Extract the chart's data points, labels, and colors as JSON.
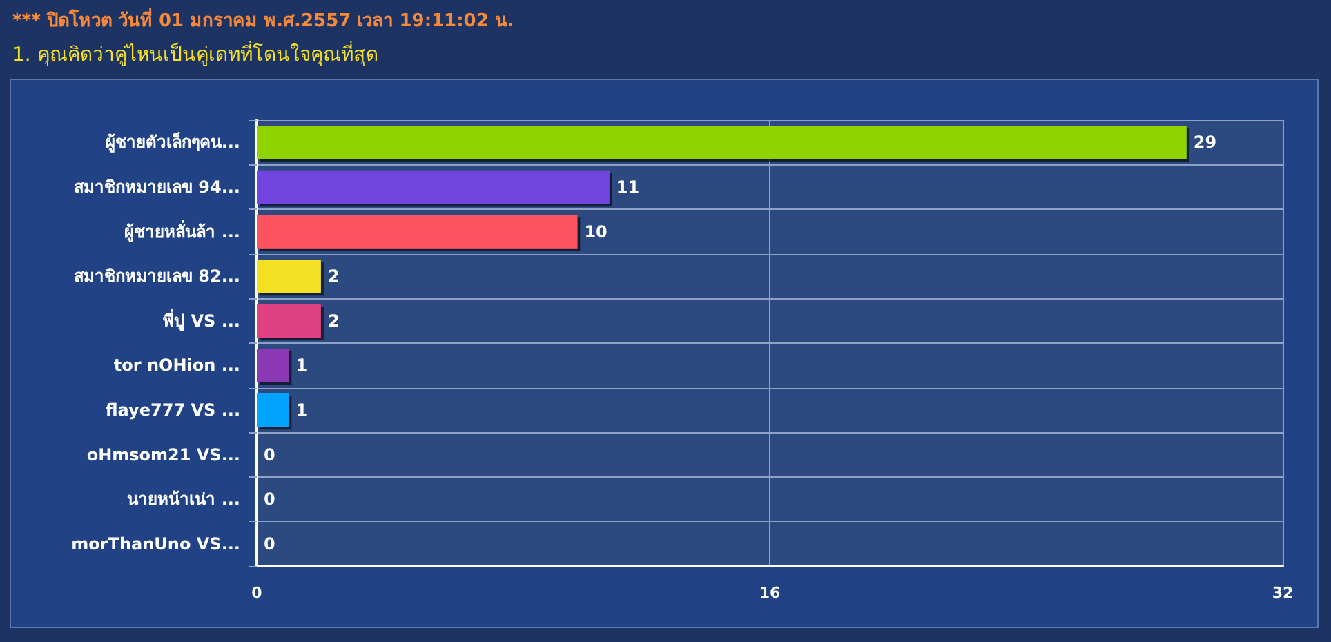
{
  "chart_data": {
    "type": "bar",
    "orientation": "horizontal",
    "subtitle": "*** ปิดโหวต วันที่ 01 มกราคม พ.ศ.2557 เวลา 19:11:02 น.",
    "title": "1. คุณคิดว่าคู่ไหนเป็นคู่เดทที่โดนใจคุณที่สุด",
    "categories": [
      "ผู้ชายตัวเล็กๆคน...",
      "สมาชิกหมายเลข 94...",
      "ผู้ชายหลั่นล้า ...",
      "สมาชิกหมายเลข 82...",
      "พี่ปู VS ...",
      "tor nOHion ...",
      "flaye777 VS ...",
      "oHmsom21 VS...",
      "นายหน้าเน่า ...",
      "morThanUno VS..."
    ],
    "values": [
      29,
      11,
      10,
      2,
      2,
      1,
      1,
      0,
      0,
      0
    ],
    "colors": [
      "#8fd400",
      "#7245e0",
      "#fd525e",
      "#f4e024",
      "#de4181",
      "#8b38b4",
      "#03a3fd",
      "#8fd400",
      "#7245e0",
      "#fd525e"
    ],
    "xlim": [
      0,
      32
    ],
    "xticks": [
      0,
      16,
      32
    ],
    "data_labels": true,
    "grid": true
  }
}
